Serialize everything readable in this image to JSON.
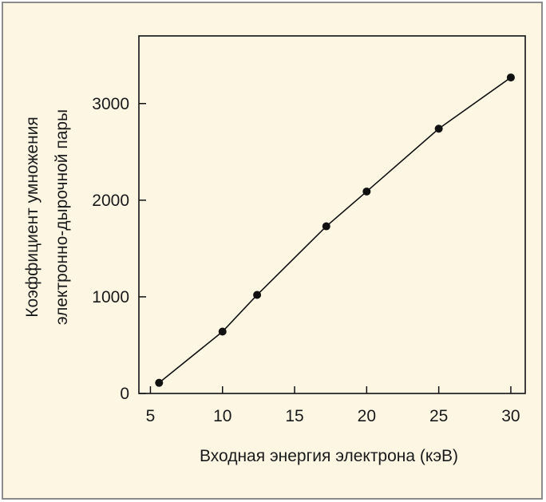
{
  "chart_data": {
    "type": "line",
    "title": "",
    "xlabel": "Входная энергия электрона (кэВ)",
    "ylabel_lines": [
      "Коэффициент умножения",
      "электронно-дырочной пары"
    ],
    "xlim": [
      4.2,
      31
    ],
    "ylim": [
      0,
      3700
    ],
    "x_ticks": [
      5,
      10,
      15,
      20,
      25,
      30
    ],
    "y_ticks": [
      0,
      1000,
      2000,
      3000
    ],
    "grid": false,
    "legend": "none",
    "markers": true,
    "series": [
      {
        "x": [
          5.6,
          10,
          12.4,
          17.2,
          20,
          25,
          30
        ],
        "y": [
          110,
          640,
          1020,
          1730,
          2090,
          2740,
          3270
        ]
      }
    ],
    "colors": {
      "line": "#111111",
      "marker": "#111111",
      "panel_bg": "#fdf6e3",
      "frame": "#8c8c8c"
    }
  }
}
